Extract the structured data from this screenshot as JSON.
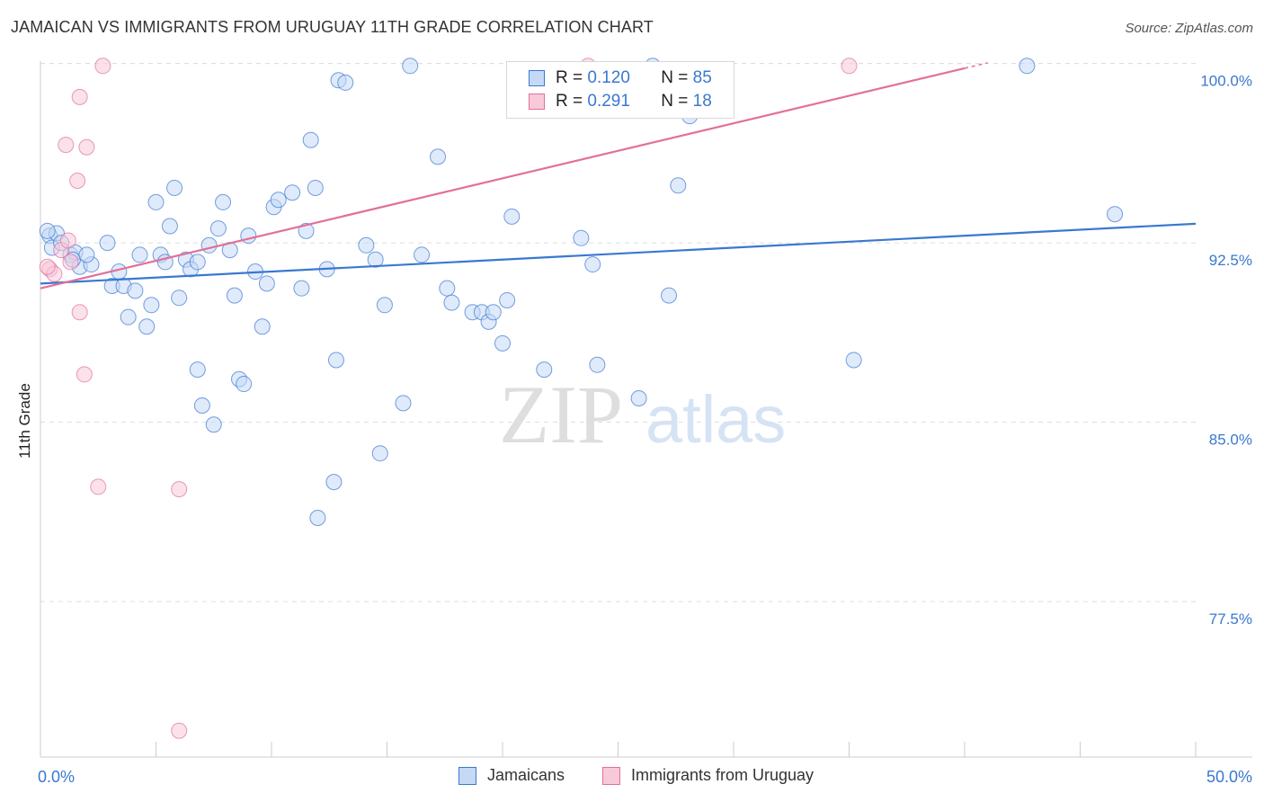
{
  "header": {
    "title": "JAMAICAN VS IMMIGRANTS FROM URUGUAY 11TH GRADE CORRELATION CHART",
    "source": "Source: ZipAtlas.com"
  },
  "watermark": {
    "part1": "ZIP",
    "part2": "atlas"
  },
  "legend": {
    "series1": {
      "r_label": "R =",
      "r_value": "0.120",
      "n_label": "N =",
      "n_value": "85"
    },
    "series2": {
      "r_label": "R =",
      "r_value": "0.291",
      "n_label": "N =",
      "n_value": "18"
    }
  },
  "bottom_legend": {
    "series1": "Jamaicans",
    "series2": "Immigrants from Uruguay"
  },
  "colors": {
    "blue": "#3a78d0",
    "blue_fill": "#c5d9f5",
    "pink": "#e36f9a",
    "pink_fill": "#f8c9d8",
    "grid": "#dddddd"
  },
  "chart_data": {
    "type": "scatter",
    "title": "JAMAICAN VS IMMIGRANTS FROM URUGUAY 11TH GRADE CORRELATION CHART",
    "xlabel": "",
    "ylabel": "11th Grade",
    "xlim": [
      0,
      50
    ],
    "ylim": [
      71.0,
      100.4
    ],
    "x_tick_labels": [
      "0.0%",
      "50.0%"
    ],
    "y_ticks": [
      77.5,
      85.0,
      92.5,
      100.0
    ],
    "y_tick_labels": [
      "77.5%",
      "85.0%",
      "92.5%",
      "100.0%"
    ],
    "grid": true,
    "series": [
      {
        "name": "Jamaicans",
        "color": "#3a78d0",
        "fill": "#c5d9f5",
        "trend": {
          "x": [
            0,
            50
          ],
          "y": [
            90.8,
            93.3
          ]
        },
        "points": [
          [
            0.4,
            92.8
          ],
          [
            0.5,
            92.3
          ],
          [
            0.7,
            92.9
          ],
          [
            0.9,
            92.5
          ],
          [
            1.3,
            92.0
          ],
          [
            1.5,
            92.1
          ],
          [
            1.7,
            91.5
          ],
          [
            2.2,
            91.6
          ],
          [
            2.9,
            92.5
          ],
          [
            3.1,
            90.7
          ],
          [
            3.4,
            91.3
          ],
          [
            3.6,
            90.7
          ],
          [
            3.8,
            89.4
          ],
          [
            4.1,
            90.5
          ],
          [
            4.3,
            92.0
          ],
          [
            4.6,
            89.0
          ],
          [
            4.8,
            89.9
          ],
          [
            5.0,
            94.2
          ],
          [
            5.2,
            92.0
          ],
          [
            5.4,
            91.7
          ],
          [
            5.6,
            93.2
          ],
          [
            5.8,
            94.8
          ],
          [
            6.0,
            90.2
          ],
          [
            6.3,
            91.8
          ],
          [
            6.5,
            91.4
          ],
          [
            6.8,
            87.2
          ],
          [
            7.0,
            85.7
          ],
          [
            7.3,
            92.4
          ],
          [
            7.5,
            84.9
          ],
          [
            7.7,
            93.1
          ],
          [
            7.9,
            94.2
          ],
          [
            8.2,
            92.2
          ],
          [
            8.4,
            90.3
          ],
          [
            8.6,
            86.8
          ],
          [
            8.8,
            86.6
          ],
          [
            9.0,
            92.8
          ],
          [
            9.3,
            91.3
          ],
          [
            9.6,
            89.0
          ],
          [
            9.8,
            90.8
          ],
          [
            10.1,
            94.0
          ],
          [
            10.3,
            94.3
          ],
          [
            10.9,
            94.6
          ],
          [
            11.3,
            90.6
          ],
          [
            11.5,
            93.0
          ],
          [
            11.7,
            96.8
          ],
          [
            11.9,
            94.8
          ],
          [
            12.4,
            91.4
          ],
          [
            12.8,
            87.6
          ],
          [
            12.9,
            99.3
          ],
          [
            13.2,
            99.2
          ],
          [
            14.1,
            92.4
          ],
          [
            14.5,
            91.8
          ],
          [
            14.7,
            83.7
          ],
          [
            14.9,
            89.9
          ],
          [
            15.7,
            85.8
          ],
          [
            16.0,
            99.9
          ],
          [
            16.5,
            92.0
          ],
          [
            17.2,
            96.1
          ],
          [
            17.6,
            90.6
          ],
          [
            17.8,
            90.0
          ],
          [
            18.7,
            89.6
          ],
          [
            19.1,
            89.6
          ],
          [
            19.4,
            89.2
          ],
          [
            19.6,
            89.6
          ],
          [
            20.0,
            88.3
          ],
          [
            20.2,
            90.1
          ],
          [
            20.4,
            93.6
          ],
          [
            21.8,
            87.2
          ],
          [
            23.4,
            92.7
          ],
          [
            23.9,
            91.6
          ],
          [
            24.1,
            87.4
          ],
          [
            25.9,
            86.0
          ],
          [
            26.5,
            99.9
          ],
          [
            27.2,
            90.3
          ],
          [
            27.6,
            94.9
          ],
          [
            28.1,
            97.8
          ],
          [
            12.7,
            82.5
          ],
          [
            12.0,
            81.0
          ],
          [
            35.2,
            87.6
          ],
          [
            42.7,
            99.9
          ],
          [
            46.5,
            93.7
          ],
          [
            1.4,
            91.8
          ],
          [
            2.0,
            92.0
          ],
          [
            0.3,
            93.0
          ],
          [
            6.8,
            91.7
          ]
        ]
      },
      {
        "name": "Immigrants from Uruguay",
        "color": "#e36f9a",
        "fill": "#f8c9d8",
        "trend": {
          "x": [
            0,
            40
          ],
          "y": [
            90.6,
            99.8
          ]
        },
        "points": [
          [
            0.4,
            91.4
          ],
          [
            0.6,
            91.2
          ],
          [
            0.9,
            92.2
          ],
          [
            1.2,
            92.6
          ],
          [
            1.1,
            96.6
          ],
          [
            1.6,
            95.1
          ],
          [
            1.7,
            98.6
          ],
          [
            2.0,
            96.5
          ],
          [
            1.9,
            87.0
          ],
          [
            1.7,
            89.6
          ],
          [
            2.5,
            82.3
          ],
          [
            2.7,
            99.9
          ],
          [
            6.0,
            82.2
          ],
          [
            6.0,
            72.1
          ],
          [
            23.7,
            99.9
          ],
          [
            35.0,
            99.9
          ],
          [
            0.3,
            91.5
          ],
          [
            1.3,
            91.7
          ]
        ]
      }
    ]
  }
}
